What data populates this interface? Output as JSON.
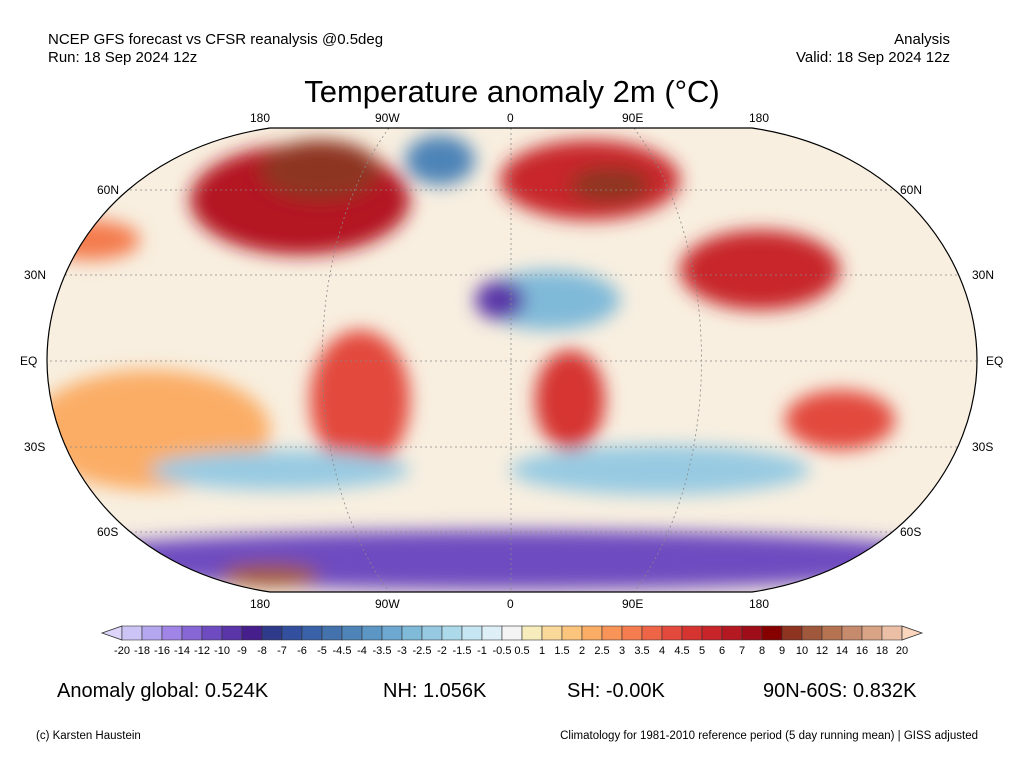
{
  "header": {
    "source": "NCEP GFS forecast vs CFSR reanalysis @0.5deg",
    "run": "Run: 18 Sep 2024 12z",
    "type": "Analysis",
    "valid": "Valid: 18 Sep 2024 12z",
    "title": "Temperature anomaly 2m (°C)"
  },
  "map": {
    "lon_labels": [
      "180",
      "90W",
      "0",
      "90E",
      "180"
    ],
    "lat_labels": [
      "60N",
      "30N",
      "EQ",
      "30S",
      "60S"
    ]
  },
  "colorbar": {
    "labels": [
      "-20",
      "-18",
      "-16",
      "-14",
      "-12",
      "-10",
      "-9",
      "-8",
      "-7",
      "-6",
      "-5",
      "-4.5",
      "-4",
      "-3.5",
      "-3",
      "-2.5",
      "-2",
      "-1.5",
      "-1",
      "-0.5",
      "0.5",
      "1",
      "1.5",
      "2",
      "2.5",
      "3",
      "3.5",
      "4",
      "4.5",
      "5",
      "6",
      "7",
      "8",
      "9",
      "10",
      "12",
      "14",
      "16",
      "18",
      "20"
    ],
    "colors": [
      "#ccc4f5",
      "#b5a6f0",
      "#a085e6",
      "#8766d6",
      "#6e4bc0",
      "#5a35a8",
      "#461f8c",
      "#2f3a8a",
      "#33509e",
      "#3a62a8",
      "#4472ad",
      "#4e84b8",
      "#5c96c4",
      "#6ca8cf",
      "#80bad9",
      "#97cae2",
      "#addaeb",
      "#c6e6f3",
      "#deeff8",
      "#f4f4f4",
      "#f6ecbc",
      "#f9d89a",
      "#fcc57d",
      "#fbad66",
      "#f89458",
      "#f47c4e",
      "#ed6447",
      "#e34a3c",
      "#d63431",
      "#c8252b",
      "#b41922",
      "#9e0d18",
      "#860000",
      "#8e3420",
      "#a0583c",
      "#b57352",
      "#c68a6c",
      "#d9a386",
      "#ebbfa5"
    ],
    "low_arrow_color": "#ddd6fa",
    "high_arrow_color": "#fcd5bd"
  },
  "stats": {
    "global": "Anomaly global: 0.524K",
    "nh": "NH: 1.056K",
    "sh": "SH: -0.00K",
    "arctic": "90N-60S: 0.832K"
  },
  "footer": {
    "credit": "(c) Karsten Haustein",
    "note": "Climatology for 1981-2010 reference period (5 day running mean) | GISS adjusted"
  }
}
